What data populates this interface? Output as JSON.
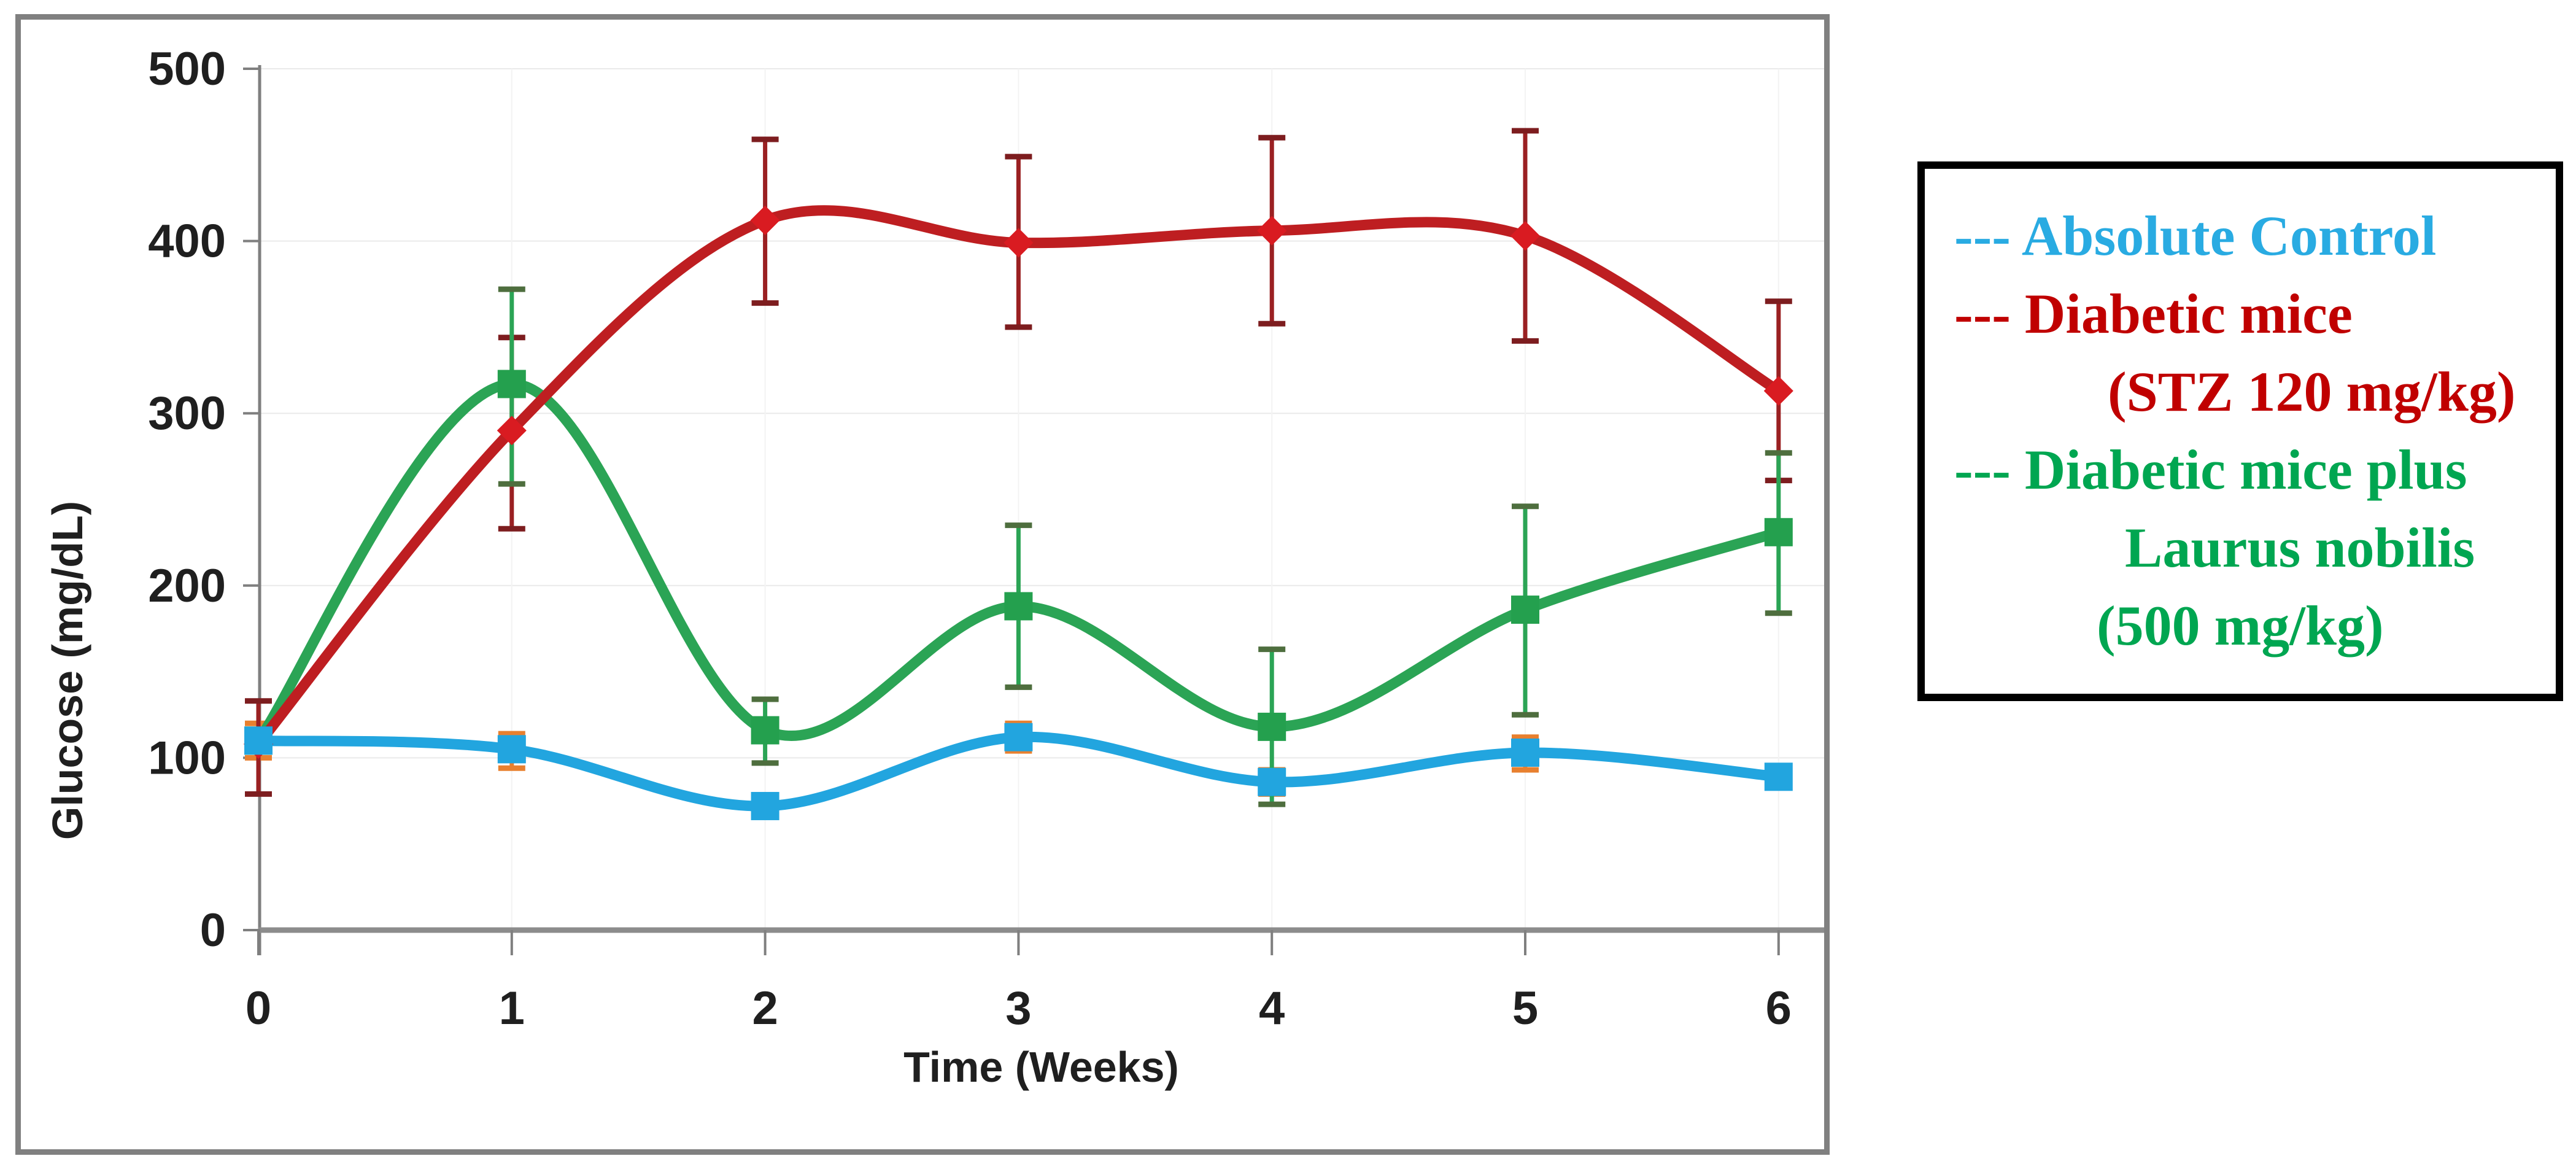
{
  "page": {
    "background": "#ffffff"
  },
  "figure_frame": {
    "border_color": "#808080"
  },
  "chart_data": {
    "type": "line",
    "title": "",
    "xlabel": "Time (Weeks)",
    "ylabel": "Glucose (mg/dL)",
    "x_ticks": [
      0,
      1,
      2,
      3,
      4,
      5,
      6
    ],
    "y_ticks": [
      0,
      100,
      200,
      300,
      400,
      500
    ],
    "xlim": [
      0,
      6
    ],
    "ylim": [
      0,
      500
    ],
    "grid": true,
    "legend_position": "outside-right",
    "x": [
      0,
      1,
      2,
      3,
      4,
      5,
      6
    ],
    "series": [
      {
        "name": "Absolute Control",
        "color": "#22A5DF",
        "marker": "square",
        "marker_color": "#22A5DF",
        "err_line_color": "#E8802F",
        "err_cap_color": "#E8802F",
        "values": [
          110,
          105,
          72,
          112,
          86,
          103,
          89
        ],
        "err_lo": [
          100,
          94,
          null,
          104,
          79,
          93,
          null
        ],
        "err_hi": [
          120,
          114,
          null,
          120,
          93,
          112,
          null
        ]
      },
      {
        "name": "Diabetic mice (STZ 120 mg/kg)",
        "color": "#BE1E21",
        "marker": "diamond",
        "marker_color": "#D91B21",
        "err_line_color": "#9A2022",
        "err_cap_color": "#7D1D1F",
        "values": [
          108,
          290,
          412,
          399,
          406,
          403,
          313
        ],
        "err_lo": [
          79,
          233,
          364,
          350,
          352,
          342,
          261
        ],
        "err_hi": [
          133,
          344,
          459,
          449,
          460,
          464,
          365
        ]
      },
      {
        "name": "Diabetic mice plus Laurus nobilis (500 mg/kg)",
        "color": "#2BA455",
        "marker": "square",
        "marker_color": "#24A04E",
        "err_line_color": "#2BA455",
        "err_cap_color": "#4E6E3E",
        "values": [
          110,
          317,
          116,
          188,
          118,
          186,
          231
        ],
        "err_lo": [
          null,
          259,
          97,
          141,
          73,
          125,
          184
        ],
        "err_hi": [
          null,
          372,
          134,
          235,
          163,
          246,
          277
        ]
      }
    ]
  },
  "legend": {
    "border_color": "#000000",
    "entries": [
      {
        "text": "--- Absolute Control",
        "color": "#29ABE2",
        "indent": 0
      },
      {
        "text": "--- Diabetic mice",
        "color": "#C00000",
        "indent": 0
      },
      {
        "text": "(STZ 120 mg/kg)",
        "color": "#C00000",
        "indent": 250
      },
      {
        "text": "--- Diabetic mice plus",
        "color": "#00A651",
        "indent": 0
      },
      {
        "text": "Laurus nobilis",
        "color": "#00A651",
        "indent": 278
      },
      {
        "text": "(500 mg/kg)",
        "color": "#00A651",
        "indent": 232
      }
    ]
  }
}
